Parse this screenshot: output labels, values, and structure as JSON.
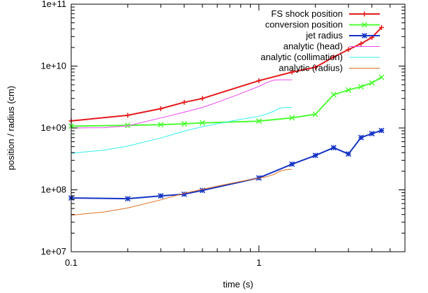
{
  "chart_data": {
    "type": "line",
    "title": "",
    "xlabel": "time (s)",
    "ylabel": "position / radius (cm)",
    "xscale": "log",
    "yscale": "log",
    "xlim": [
      0.1,
      6
    ],
    "ylim": [
      10000000,
      100000000000
    ],
    "xticks": [
      {
        "value": 0.1,
        "label": "0.1"
      },
      {
        "value": 1,
        "label": "1"
      }
    ],
    "yticks": [
      {
        "value": 10000000,
        "label": "1e+07"
      },
      {
        "value": 100000000,
        "label": "1e+08"
      },
      {
        "value": 1000000000,
        "label": "1e+09"
      },
      {
        "value": 10000000000,
        "label": "1e+10"
      },
      {
        "value": 100000000000,
        "label": "1e+11"
      }
    ],
    "grid": false,
    "legend_position": "top-right",
    "series": [
      {
        "name": "FS shock position",
        "color": "#e41a1c",
        "marker": "plus",
        "line_width": 2,
        "x": [
          0.1,
          0.2,
          0.3,
          0.4,
          0.5,
          1.0,
          1.5,
          2.0,
          2.5,
          3.0,
          3.5,
          4.0,
          4.5
        ],
        "y": [
          1300000000.0,
          1600000000.0,
          2050000000.0,
          2600000000.0,
          3000000000.0,
          5800000000.0,
          8000000000.0,
          9600000000.0,
          14000000000.0,
          18500000000.0,
          23000000000.0,
          29000000000.0,
          42000000000.0
        ]
      },
      {
        "name": "conversion position",
        "color": "#4cff33",
        "marker": "x",
        "line_width": 2,
        "x": [
          0.1,
          0.2,
          0.3,
          0.4,
          0.5,
          1.0,
          1.5,
          2.0,
          2.5,
          3.0,
          3.5,
          4.0,
          4.5
        ],
        "y": [
          1070000000.0,
          1100000000.0,
          1130000000.0,
          1170000000.0,
          1210000000.0,
          1290000000.0,
          1460000000.0,
          1660000000.0,
          3450000000.0,
          4100000000.0,
          4650000000.0,
          5350000000.0,
          6600000000.0
        ]
      },
      {
        "name": "jet radius",
        "color": "#1533c4",
        "marker": "star",
        "line_width": 2,
        "x": [
          0.1,
          0.2,
          0.3,
          0.4,
          0.5,
          1.0,
          1.5,
          2.0,
          2.5,
          3.0,
          3.5,
          4.0,
          4.5
        ],
        "y": [
          74000000.0,
          72000000.0,
          80000000.0,
          85000000.0,
          98000000.0,
          156000000.0,
          260000000.0,
          360000000.0,
          480000000.0,
          380000000.0,
          700000000.0,
          810000000.0,
          910000000.0
        ]
      },
      {
        "name": "analytic (head)",
        "color": "#ee44ee",
        "marker": "none",
        "line_width": 1,
        "x": [
          0.1,
          0.15,
          0.2,
          0.3,
          0.4,
          0.5,
          0.6,
          0.8,
          1.0,
          1.1,
          1.2,
          1.3,
          1.5
        ],
        "y": [
          1000000000.0,
          1010000000.0,
          1080000000.0,
          1450000000.0,
          1800000000.0,
          2150000000.0,
          2600000000.0,
          3600000000.0,
          4700000000.0,
          5400000000.0,
          5950000000.0,
          6000000000.0,
          6000000000.0
        ]
      },
      {
        "name": "analytic (collimation)",
        "color": "#33eeee",
        "marker": "none",
        "line_width": 1,
        "x": [
          0.1,
          0.15,
          0.2,
          0.3,
          0.4,
          0.5,
          0.6,
          0.8,
          1.0,
          1.1,
          1.2,
          1.3,
          1.4,
          1.5
        ],
        "y": [
          390000000.0,
          440000000.0,
          510000000.0,
          690000000.0,
          890000000.0,
          1050000000.0,
          1170000000.0,
          1380000000.0,
          1550000000.0,
          1680000000.0,
          1860000000.0,
          2100000000.0,
          2150000000.0,
          2150000000.0
        ]
      },
      {
        "name": "analytic (radius)",
        "color": "#e07020",
        "marker": "none",
        "line_width": 1,
        "x": [
          0.1,
          0.15,
          0.2,
          0.3,
          0.4,
          0.5,
          0.6,
          0.8,
          1.0,
          1.1,
          1.2,
          1.3,
          1.4,
          1.5
        ],
        "y": [
          39000000.0,
          44000000.0,
          51000000.0,
          69000000.0,
          88000000.0,
          102000000.0,
          115000000.0,
          137000000.0,
          155000000.0,
          163000000.0,
          177000000.0,
          202000000.0,
          212000000.0,
          214000000.0
        ]
      }
    ]
  }
}
